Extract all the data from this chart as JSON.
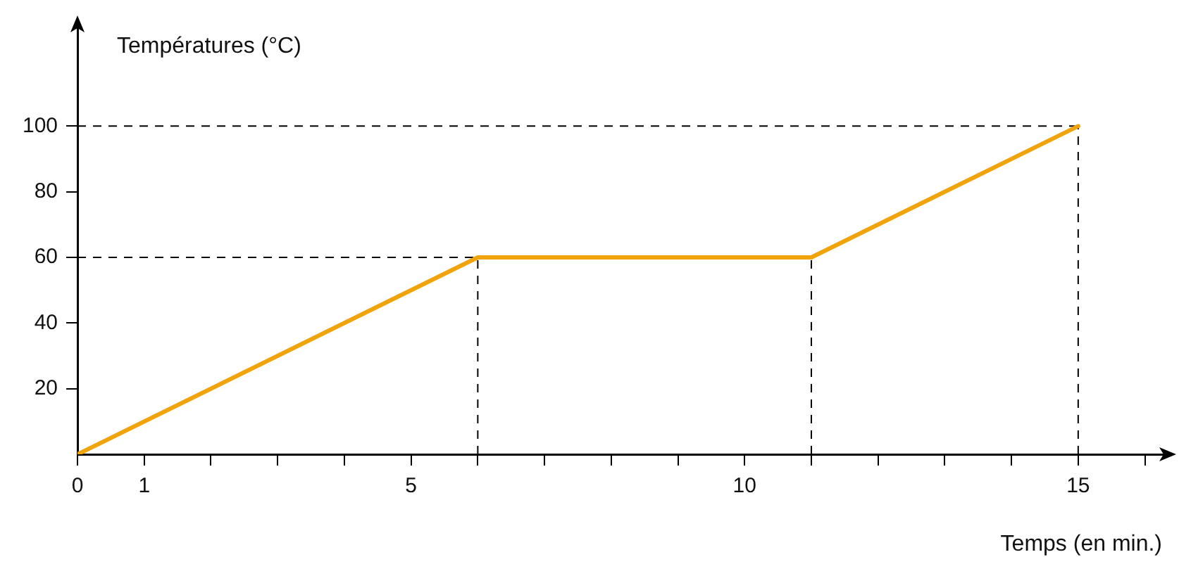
{
  "chart_data": {
    "type": "line",
    "xlabel": "Temps (en min.)",
    "ylabel": "Températures (°C)",
    "x": [
      0,
      6,
      11,
      15
    ],
    "series": [
      {
        "color": "#f0a30a",
        "values": [
          0,
          60,
          60,
          100
        ]
      }
    ],
    "xlim": [
      0,
      16.3
    ],
    "ylim": [
      0,
      132
    ],
    "xticks": [
      0,
      1,
      {
        "value": 2,
        "label": null
      },
      {
        "value": 3,
        "label": null
      },
      {
        "value": 4,
        "label": null
      },
      5,
      {
        "value": 6,
        "label": null
      },
      {
        "value": 7,
        "label": null
      },
      {
        "value": 8,
        "label": null
      },
      {
        "value": 9,
        "label": null
      },
      10,
      {
        "value": 11,
        "label": null
      },
      {
        "value": 12,
        "label": null
      },
      {
        "value": 13,
        "label": null
      },
      {
        "value": 14,
        "label": null
      },
      15,
      {
        "value": 16,
        "label": null
      }
    ],
    "yticks": [
      20,
      40,
      60,
      80,
      100
    ],
    "ref_lines": [
      {
        "axis": "y",
        "value": 60,
        "line_style": "dashed"
      },
      {
        "axis": "y",
        "value": 100,
        "line_style": "dashed"
      },
      {
        "axis": "x",
        "value": 6,
        "line_style": "dashed"
      },
      {
        "axis": "x",
        "value": 11,
        "line_style": "dashed"
      },
      {
        "axis": "x",
        "value": 15,
        "line_style": "dashed"
      }
    ],
    "grid": false,
    "legend": false,
    "marker": "none",
    "line_style": "solid"
  }
}
